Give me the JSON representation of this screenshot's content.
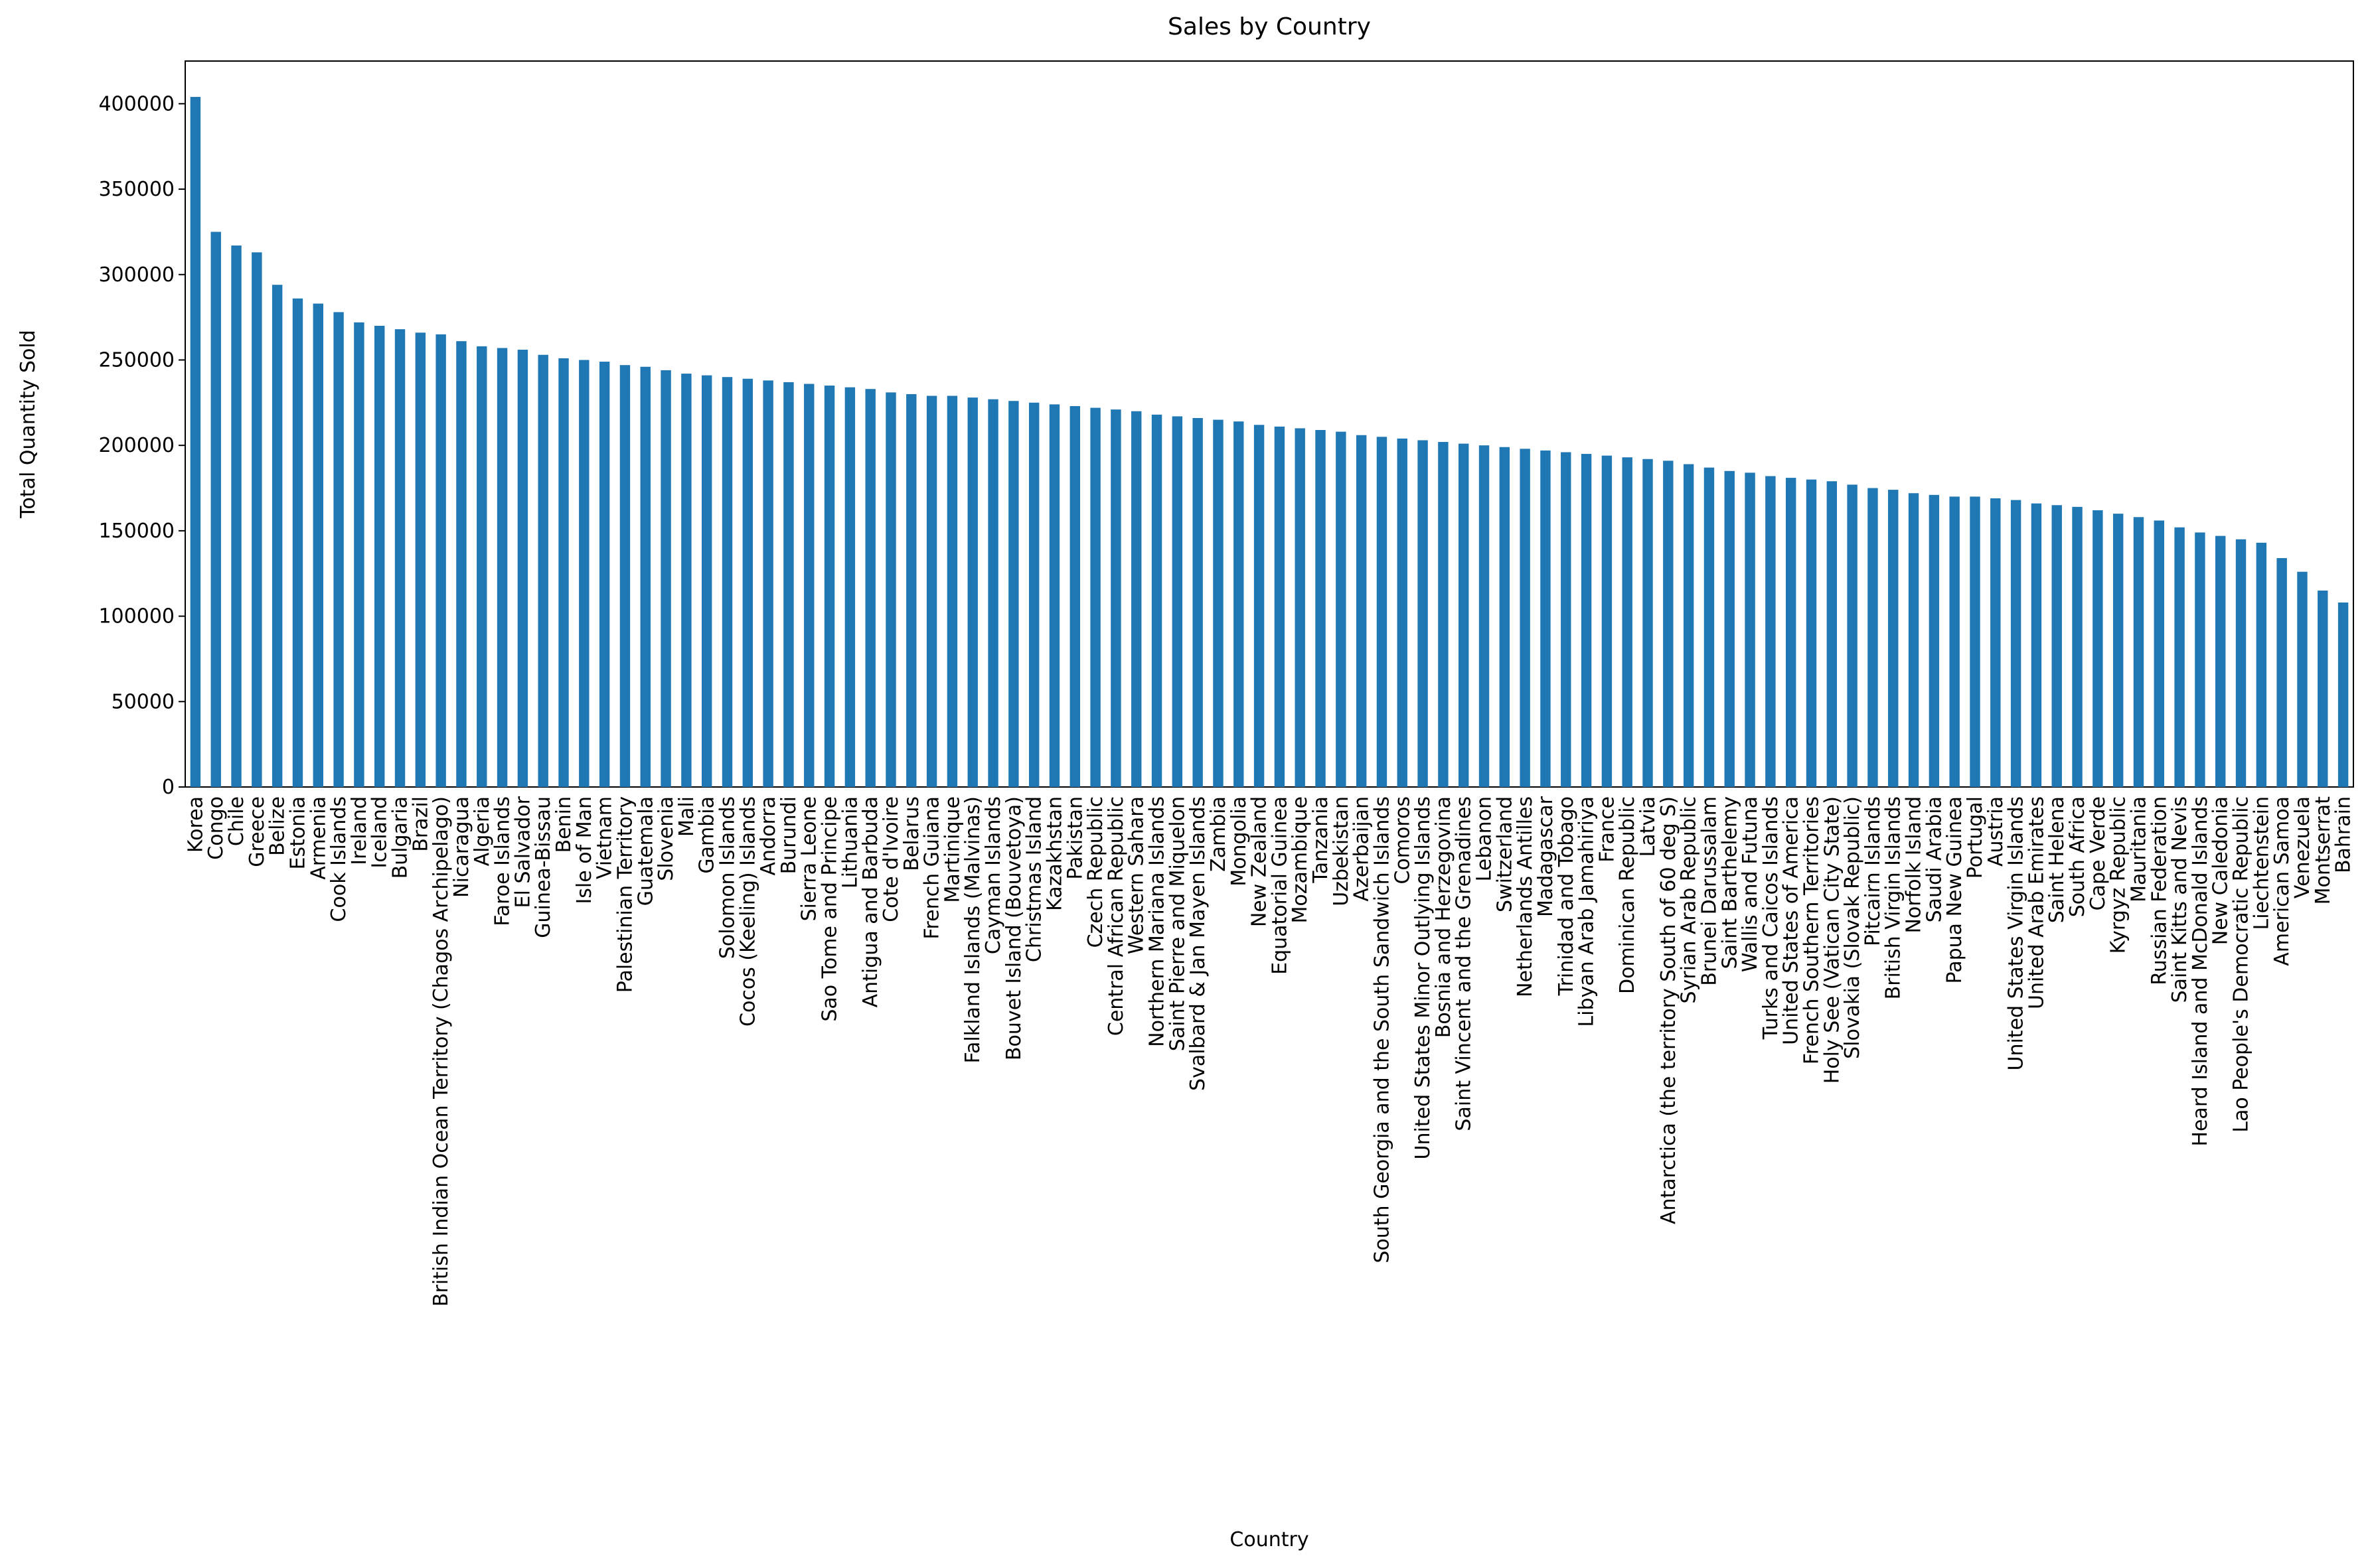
{
  "chart_data": {
    "type": "bar",
    "title": "Sales by Country",
    "x_label": "Country",
    "y_label": "Total Quantity Sold",
    "color": "#1f77b4",
    "categories": [
      "Korea",
      "Congo",
      "Chile",
      "Greece",
      "Belize",
      "Estonia",
      "Armenia",
      "Cook Islands",
      "Ireland",
      "Iceland",
      "Bulgaria",
      "Brazil",
      "British Indian Ocean Territory (Chagos Archipelago)",
      "Nicaragua",
      "Algeria",
      "Faroe Islands",
      "El Salvador",
      "Guinea-Bissau",
      "Benin",
      "Isle of Man",
      "Vietnam",
      "Palestinian Territory",
      "Guatemala",
      "Slovenia",
      "Mali",
      "Gambia",
      "Solomon Islands",
      "Cocos (Keeling) Islands",
      "Andorra",
      "Burundi",
      "Sierra Leone",
      "Sao Tome and Principe",
      "Lithuania",
      "Antigua and Barbuda",
      "Cote d'Ivoire",
      "Belarus",
      "French Guiana",
      "Martinique",
      "Falkland Islands (Malvinas)",
      "Cayman Islands",
      "Bouvet Island (Bouvetoya)",
      "Christmas Island",
      "Kazakhstan",
      "Pakistan",
      "Czech Republic",
      "Central African Republic",
      "Western Sahara",
      "Northern Mariana Islands",
      "Saint Pierre and Miquelon",
      "Svalbard & Jan Mayen Islands",
      "Zambia",
      "Mongolia",
      "New Zealand",
      "Equatorial Guinea",
      "Mozambique",
      "Tanzania",
      "Uzbekistan",
      "Azerbaijan",
      "South Georgia and the South Sandwich Islands",
      "Comoros",
      "United States Minor Outlying Islands",
      "Bosnia and Herzegovina",
      "Saint Vincent and the Grenadines",
      "Lebanon",
      "Switzerland",
      "Netherlands Antilles",
      "Madagascar",
      "Trinidad and Tobago",
      "Libyan Arab Jamahiriya",
      "France",
      "Dominican Republic",
      "Latvia",
      "Antarctica (the territory South of 60 deg S)",
      "Syrian Arab Republic",
      "Brunei Darussalam",
      "Saint Barthelemy",
      "Wallis and Futuna",
      "Turks and Caicos Islands",
      "United States of America",
      "French Southern Territories",
      "Holy See (Vatican City State)",
      "Slovakia (Slovak Republic)",
      "Pitcairn Islands",
      "British Virgin Islands",
      "Norfolk Island",
      "Saudi Arabia",
      "Papua New Guinea",
      "Portugal",
      "Austria",
      "United States Virgin Islands",
      "United Arab Emirates",
      "Saint Helena",
      "South Africa",
      "Cape Verde",
      "Kyrgyz Republic",
      "Mauritania",
      "Russian Federation",
      "Saint Kitts and Nevis",
      "Heard Island and McDonald Islands",
      "New Caledonia",
      "Lao People's Democratic Republic",
      "Liechtenstein",
      "American Samoa",
      "Venezuela",
      "Montserrat",
      "Bahrain"
    ],
    "values": [
      404000,
      325000,
      317000,
      313000,
      294000,
      286000,
      283000,
      278000,
      272000,
      270000,
      268000,
      266000,
      265000,
      261000,
      258000,
      257000,
      256000,
      253000,
      251000,
      250000,
      249000,
      247000,
      246000,
      244000,
      242000,
      241000,
      240000,
      239000,
      238000,
      237000,
      236000,
      235000,
      234000,
      233000,
      231000,
      230000,
      229000,
      229000,
      228000,
      227000,
      226000,
      225000,
      224000,
      223000,
      222000,
      221000,
      220000,
      218000,
      217000,
      216000,
      215000,
      214000,
      212000,
      211000,
      210000,
      209000,
      208000,
      206000,
      205000,
      204000,
      203000,
      202000,
      201000,
      200000,
      199000,
      198000,
      197000,
      196000,
      195000,
      194000,
      193000,
      192000,
      191000,
      189000,
      187000,
      185000,
      184000,
      182000,
      181000,
      180000,
      179000,
      177000,
      175000,
      174000,
      172000,
      171000,
      170000,
      170000,
      169000,
      168000,
      166000,
      165000,
      164000,
      162000,
      160000,
      158000,
      156000,
      152000,
      149000,
      147000,
      145000,
      143000,
      134000,
      126000,
      115000,
      108000
    ],
    "ylim": [
      0,
      425000
    ],
    "yticks": [
      0,
      50000,
      100000,
      150000,
      200000,
      250000,
      300000,
      350000,
      400000
    ],
    "grid": false
  }
}
